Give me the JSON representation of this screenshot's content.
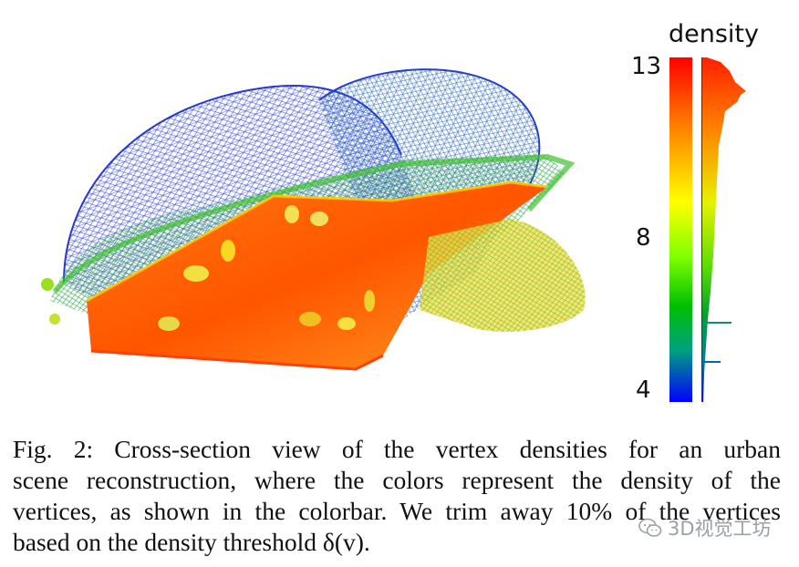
{
  "colorbar": {
    "title": "density",
    "ticks": [
      "13",
      "8",
      "4"
    ],
    "range": [
      4,
      13
    ],
    "colors": [
      "#ff0000",
      "#ff7f00",
      "#ffff00",
      "#7fff00",
      "#00c000",
      "#00a080",
      "#0000ff"
    ]
  },
  "caption": {
    "lines": [
      "Fig. 2: Cross-section view of the vertex densities for an urban",
      "scene reconstruction, where the colors represent the density of the",
      "vertices, as shown in the colorbar. We trim away 10% of the vertices",
      "based on the density threshold δ(v)."
    ]
  },
  "watermark": {
    "text": "3D视觉工坊",
    "icon": "wechat-icon"
  }
}
